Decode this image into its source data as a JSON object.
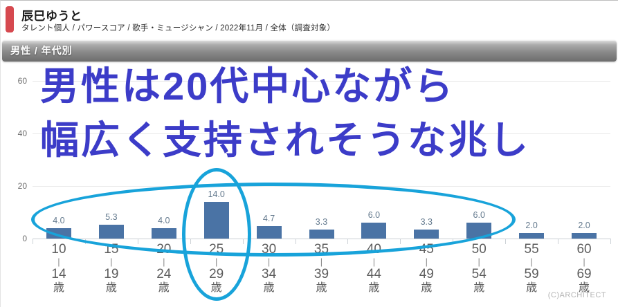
{
  "header": {
    "title": "辰巳ゆうと",
    "subtitle": "タレント個人 / パワースコア / 歌手・ミュージシャン / 2022年11月 / 全体（調査対象）",
    "accent_color": "#d6494f"
  },
  "section": {
    "label": "男性 / 年代別"
  },
  "annotation": {
    "line1": "男性は20代中心ながら",
    "line2": "幅広く支持されそうな兆し",
    "color": "#3c3cc8"
  },
  "highlights": {
    "ellipse_color": "#18a3da"
  },
  "chart_data": {
    "type": "bar",
    "title": "男性 / 年代別",
    "xlabel": "",
    "ylabel": "",
    "categories": [
      {
        "from": "10",
        "to": "14",
        "unit": "歳"
      },
      {
        "from": "15",
        "to": "19",
        "unit": "歳"
      },
      {
        "from": "20",
        "to": "24",
        "unit": "歳"
      },
      {
        "from": "25",
        "to": "29",
        "unit": "歳"
      },
      {
        "from": "30",
        "to": "34",
        "unit": "歳"
      },
      {
        "from": "35",
        "to": "39",
        "unit": "歳"
      },
      {
        "from": "40",
        "to": "44",
        "unit": "歳"
      },
      {
        "from": "45",
        "to": "49",
        "unit": "歳"
      },
      {
        "from": "50",
        "to": "54",
        "unit": "歳"
      },
      {
        "from": "55",
        "to": "59",
        "unit": "歳"
      },
      {
        "from": "60",
        "to": "69",
        "unit": "歳"
      }
    ],
    "category_separator": "|",
    "values": [
      4.0,
      5.3,
      4.0,
      14.0,
      4.7,
      3.3,
      6.0,
      3.3,
      6.0,
      2.0,
      2.0
    ],
    "value_decimals": 1,
    "yticks": [
      0,
      20,
      40,
      60
    ],
    "ylim": [
      0,
      65
    ],
    "grid": true,
    "legend": false,
    "bar_color": "#4a73a5",
    "value_label_color": "#647a8e",
    "axis_label_color": "#5d5d5d"
  },
  "footer": {
    "copyright": "(C)ARCHITECT"
  }
}
